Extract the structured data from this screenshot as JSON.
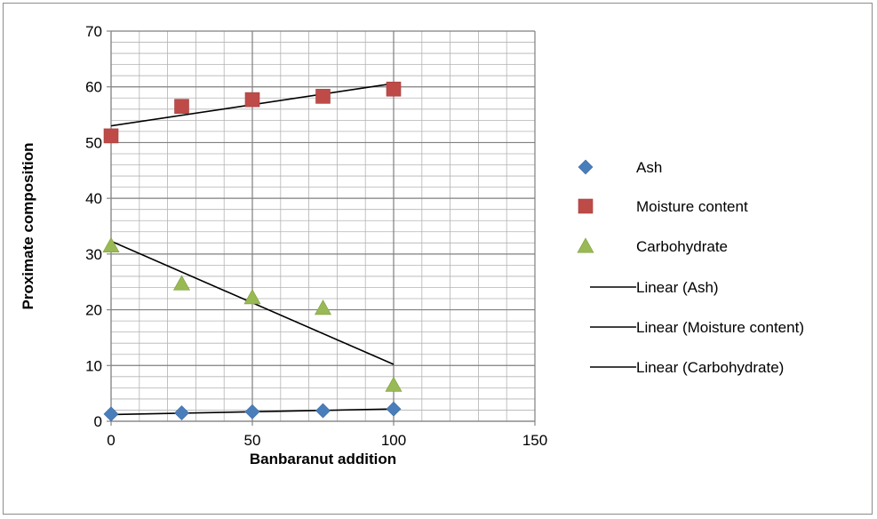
{
  "chart_data": {
    "type": "scatter",
    "title": "",
    "xlabel": "Banbaranut addition",
    "ylabel": "Proximate composition",
    "xlim": [
      0,
      150
    ],
    "ylim": [
      0,
      70
    ],
    "x_major_step": 50,
    "x_minor_step": 10,
    "y_major_step": 10,
    "y_minor_step": 2,
    "x_ticks": [
      "0",
      "50",
      "100",
      "150"
    ],
    "y_ticks": [
      "0",
      "10",
      "20",
      "30",
      "40",
      "50",
      "60",
      "70"
    ],
    "grid": true,
    "legend_position": "right",
    "series": [
      {
        "name": "Ash",
        "marker": "diamond",
        "color": "#4a7ebb",
        "x": [
          0,
          25,
          50,
          75,
          100
        ],
        "y": [
          1.3,
          1.5,
          1.7,
          1.9,
          2.2
        ]
      },
      {
        "name": "Moisture content",
        "marker": "square",
        "color": "#be4b48",
        "x": [
          0,
          25,
          50,
          75,
          100
        ],
        "y": [
          51.2,
          56.5,
          57.7,
          58.3,
          59.6
        ]
      },
      {
        "name": "Carbohydrate",
        "marker": "triangle",
        "color": "#98b954",
        "x": [
          0,
          25,
          50,
          75,
          100
        ],
        "y": [
          31.5,
          24.7,
          22.2,
          20.3,
          6.5
        ]
      }
    ],
    "trendlines": [
      {
        "name": "Linear (Ash)",
        "color": "#000000",
        "x": [
          0,
          100
        ],
        "y": [
          1.2,
          2.2
        ]
      },
      {
        "name": "Linear (Moisture content)",
        "color": "#000000",
        "x": [
          0,
          100
        ],
        "y": [
          53.0,
          60.6
        ]
      },
      {
        "name": "Linear (Carbohydrate)",
        "color": "#000000",
        "x": [
          0,
          100
        ],
        "y": [
          32.3,
          10.2
        ]
      }
    ]
  }
}
